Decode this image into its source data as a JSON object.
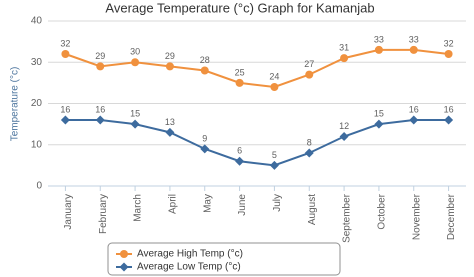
{
  "chart_data": {
    "type": "line",
    "title": "Average Temperature (°c) Graph for Kamanjab",
    "y_label": "Temperature (°c)",
    "categories": [
      "January",
      "February",
      "March",
      "April",
      "May",
      "June",
      "July",
      "August",
      "September",
      "October",
      "November",
      "December"
    ],
    "series": [
      {
        "name": "Average High Temp (°c)",
        "color": "#f0913e",
        "marker": "circle",
        "values": [
          32,
          29,
          30,
          29,
          28,
          25,
          24,
          27,
          31,
          33,
          33,
          32
        ]
      },
      {
        "name": "Average Low Temp (°c)",
        "color": "#3d6b9e",
        "marker": "diamond",
        "values": [
          16,
          16,
          15,
          13,
          9,
          6,
          5,
          8,
          12,
          15,
          16,
          16
        ]
      }
    ],
    "ylim": [
      0,
      40
    ],
    "yticks": [
      0,
      10,
      20,
      30,
      40
    ],
    "grid": true,
    "legend": "bottom"
  }
}
